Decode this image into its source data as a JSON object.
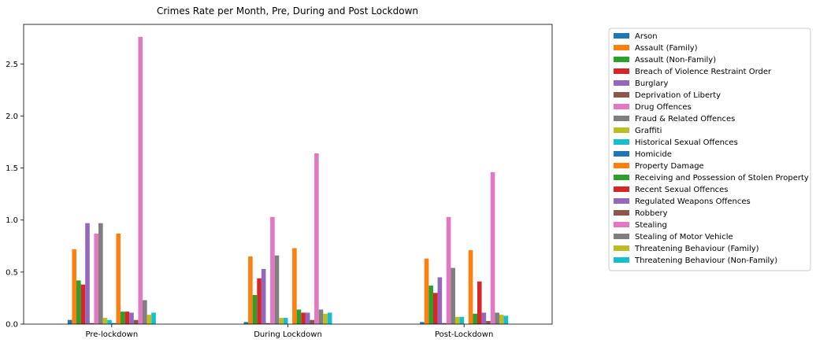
{
  "chart_data": {
    "type": "bar",
    "title": "Crimes Rate per Month, Pre, During and Post Lockdown",
    "xlabel": "",
    "ylabel": "",
    "ylim": [
      0,
      2.88
    ],
    "yticks": [
      "0.0",
      "0.5",
      "1.0",
      "1.5",
      "2.0",
      "2.5"
    ],
    "categories": [
      "Pre-lockdown",
      "During Lockdown",
      "Post-Lockdown"
    ],
    "legend_position": "outside-right",
    "grid": false,
    "series": [
      {
        "name": "Arson",
        "color": "#1f77b4",
        "values": [
          0.04,
          0.02,
          0.02
        ]
      },
      {
        "name": "Assault (Family)",
        "color": "#ff7f0e",
        "values": [
          0.72,
          0.65,
          0.63
        ]
      },
      {
        "name": "Assault (Non-Family)",
        "color": "#2ca02c",
        "values": [
          0.42,
          0.28,
          0.37
        ]
      },
      {
        "name": "Breach of Violence Restraint Order",
        "color": "#d62728",
        "values": [
          0.38,
          0.44,
          0.3
        ]
      },
      {
        "name": "Burglary",
        "color": "#9467bd",
        "values": [
          0.97,
          0.53,
          0.45
        ]
      },
      {
        "name": "Deprivation of Liberty",
        "color": "#8c564b",
        "values": [
          0.01,
          0.01,
          0.01
        ]
      },
      {
        "name": "Drug Offences",
        "color": "#e377c2",
        "values": [
          0.87,
          1.03,
          1.03
        ]
      },
      {
        "name": "Fraud & Related Offences",
        "color": "#7f7f7f",
        "values": [
          0.97,
          0.66,
          0.54
        ]
      },
      {
        "name": "Graffiti",
        "color": "#bcbd22",
        "values": [
          0.06,
          0.06,
          0.07
        ]
      },
      {
        "name": "Historical Sexual Offences",
        "color": "#17becf",
        "values": [
          0.04,
          0.06,
          0.07
        ]
      },
      {
        "name": "Homicide",
        "color": "#1f77b4",
        "values": [
          0.01,
          0.0,
          0.0
        ]
      },
      {
        "name": "Property Damage",
        "color": "#ff7f0e",
        "values": [
          0.87,
          0.73,
          0.71
        ]
      },
      {
        "name": "Receiving and Possession of Stolen Property",
        "color": "#2ca02c",
        "values": [
          0.12,
          0.14,
          0.1
        ]
      },
      {
        "name": "Recent Sexual Offences",
        "color": "#d62728",
        "values": [
          0.12,
          0.11,
          0.41
        ]
      },
      {
        "name": "Regulated Weapons Offences",
        "color": "#9467bd",
        "values": [
          0.11,
          0.11,
          0.11
        ]
      },
      {
        "name": "Robbery",
        "color": "#8c564b",
        "values": [
          0.04,
          0.04,
          0.03
        ]
      },
      {
        "name": "Stealing",
        "color": "#e377c2",
        "values": [
          2.76,
          1.64,
          1.46
        ]
      },
      {
        "name": "Stealing of Motor Vehicle",
        "color": "#7f7f7f",
        "values": [
          0.23,
          0.14,
          0.11
        ]
      },
      {
        "name": "Threatening Behaviour (Family)",
        "color": "#bcbd22",
        "values": [
          0.09,
          0.1,
          0.09
        ]
      },
      {
        "name": "Threatening Behaviour (Non-Family)",
        "color": "#17becf",
        "values": [
          0.11,
          0.11,
          0.08
        ]
      }
    ]
  }
}
